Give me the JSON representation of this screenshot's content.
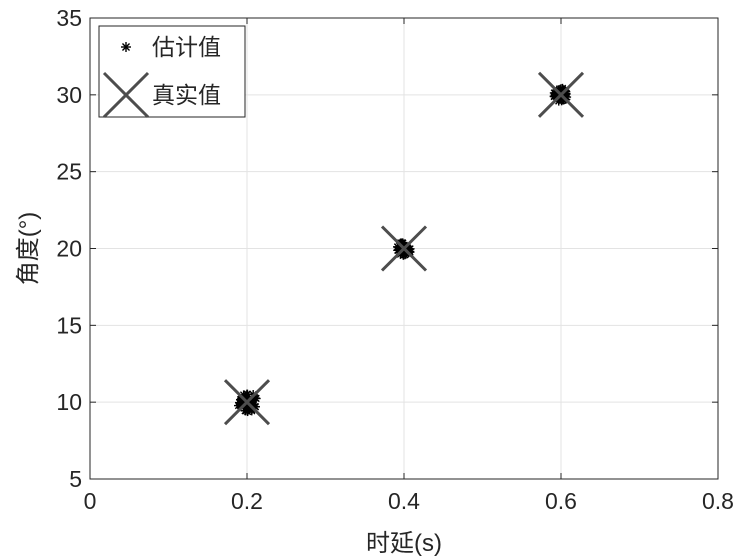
{
  "chart_data": {
    "type": "scatter",
    "xlabel": "时延(s)",
    "ylabel": "角度(°)",
    "xlim": [
      0,
      0.8
    ],
    "ylim": [
      5,
      35
    ],
    "xticks": [
      "0",
      "0.2",
      "0.4",
      "0.6",
      "0.8"
    ],
    "yticks": [
      "5",
      "10",
      "15",
      "20",
      "25",
      "30",
      "35"
    ],
    "grid": true,
    "legend_position": "top-left",
    "series": [
      {
        "name": "估计值",
        "marker": "asterisk",
        "color": "#000000",
        "points": [
          {
            "x": 0.2,
            "y": 10
          },
          {
            "x": 0.4,
            "y": 20
          },
          {
            "x": 0.6,
            "y": 30
          }
        ]
      },
      {
        "name": "真实值",
        "marker": "x",
        "color": "#4d4d4d",
        "points": [
          {
            "x": 0.2,
            "y": 10
          },
          {
            "x": 0.4,
            "y": 20
          },
          {
            "x": 0.6,
            "y": 30
          }
        ]
      }
    ]
  }
}
